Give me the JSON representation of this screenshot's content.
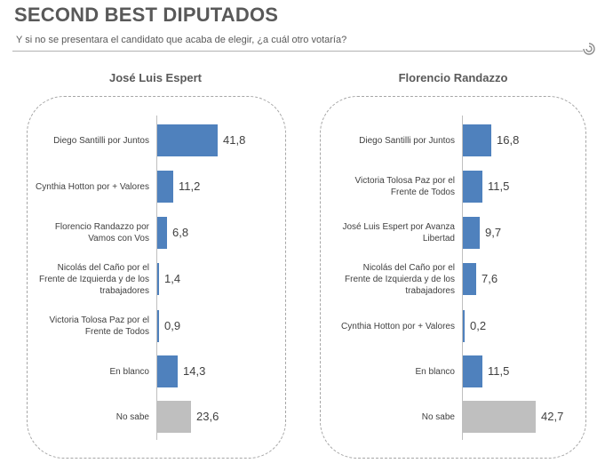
{
  "title": "SECOND BEST DIPUTADOS",
  "subtitle": "Y si no se presentara el candidato que acaba de elegir, ¿a cuál otro votaría?",
  "colors": {
    "bar": "#4f81bd",
    "no_sabe": "#bfbfbf",
    "frame": "#a6a6a6"
  },
  "chart_data": [
    {
      "type": "bar",
      "orientation": "horizontal",
      "title": "José Luis Espert",
      "categories": [
        "Diego Santilli por Juntos",
        "Cynthia Hotton por + Valores",
        "Florencio Randazzo por Vamos con Vos",
        "Nicolás del Caño por el Frente de Izquierda y de los trabajadores",
        "Victoria Tolosa Paz por el Frente de Todos",
        "En blanco",
        "No sabe"
      ],
      "values": [
        41.8,
        11.2,
        6.8,
        1.4,
        0.9,
        14.3,
        23.6
      ],
      "labels": [
        "41,8",
        "11,2",
        "6,8",
        "1,4",
        "0,9",
        "14,3",
        "23,6"
      ]
    },
    {
      "type": "bar",
      "orientation": "horizontal",
      "title": "Florencio Randazzo",
      "categories": [
        "Diego Santilli por Juntos",
        "Victoria Tolosa Paz por el Frente de Todos",
        "José Luis Espert por Avanza Libertad",
        "Nicolás del Caño por el Frente de Izquierda y de los trabajadores",
        "Cynthia Hotton por + Valores",
        "En blanco",
        "No sabe"
      ],
      "values": [
        16.8,
        11.5,
        9.7,
        7.6,
        0.2,
        11.5,
        42.7
      ],
      "labels": [
        "16,8",
        "11,5",
        "9,7",
        "7,6",
        "0,2",
        "11,5",
        "42,7"
      ]
    }
  ]
}
